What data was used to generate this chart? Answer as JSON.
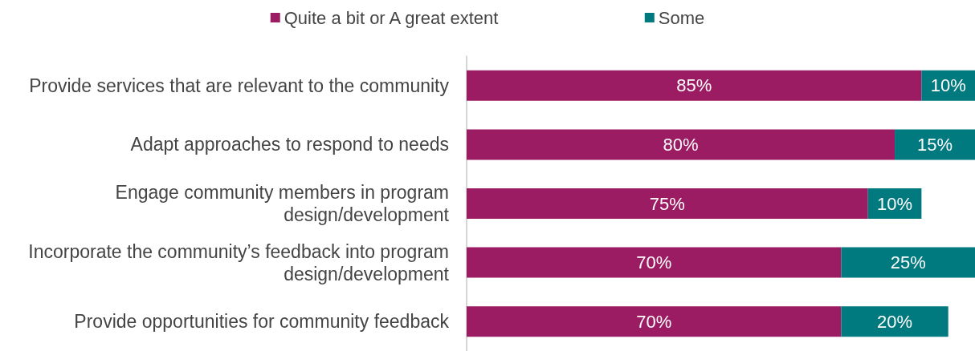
{
  "chart_data": {
    "type": "bar",
    "orientation": "horizontal",
    "stacked": true,
    "legend": "top",
    "tick_labels": "y",
    "xlim": [
      0,
      95
    ],
    "categories": [
      "Provide services that are relevant to the community",
      "Adapt approaches to respond to needs",
      "Engage community members in program design/development",
      "Incorporate the community’s feedback into program design/development",
      "Provide opportunities for community feedback"
    ],
    "series": [
      {
        "name": "Quite a bit or A great extent",
        "color": "#9c1c63",
        "values": [
          85,
          80,
          75,
          70,
          70
        ],
        "value_labels": [
          "85%",
          "80%",
          "75%",
          "70%",
          "70%"
        ]
      },
      {
        "name": "Some",
        "color": "#00797f",
        "values": [
          10,
          15,
          10,
          25,
          20
        ],
        "value_labels": [
          "10%",
          "15%",
          "10%",
          "25%",
          "20%"
        ]
      }
    ]
  }
}
